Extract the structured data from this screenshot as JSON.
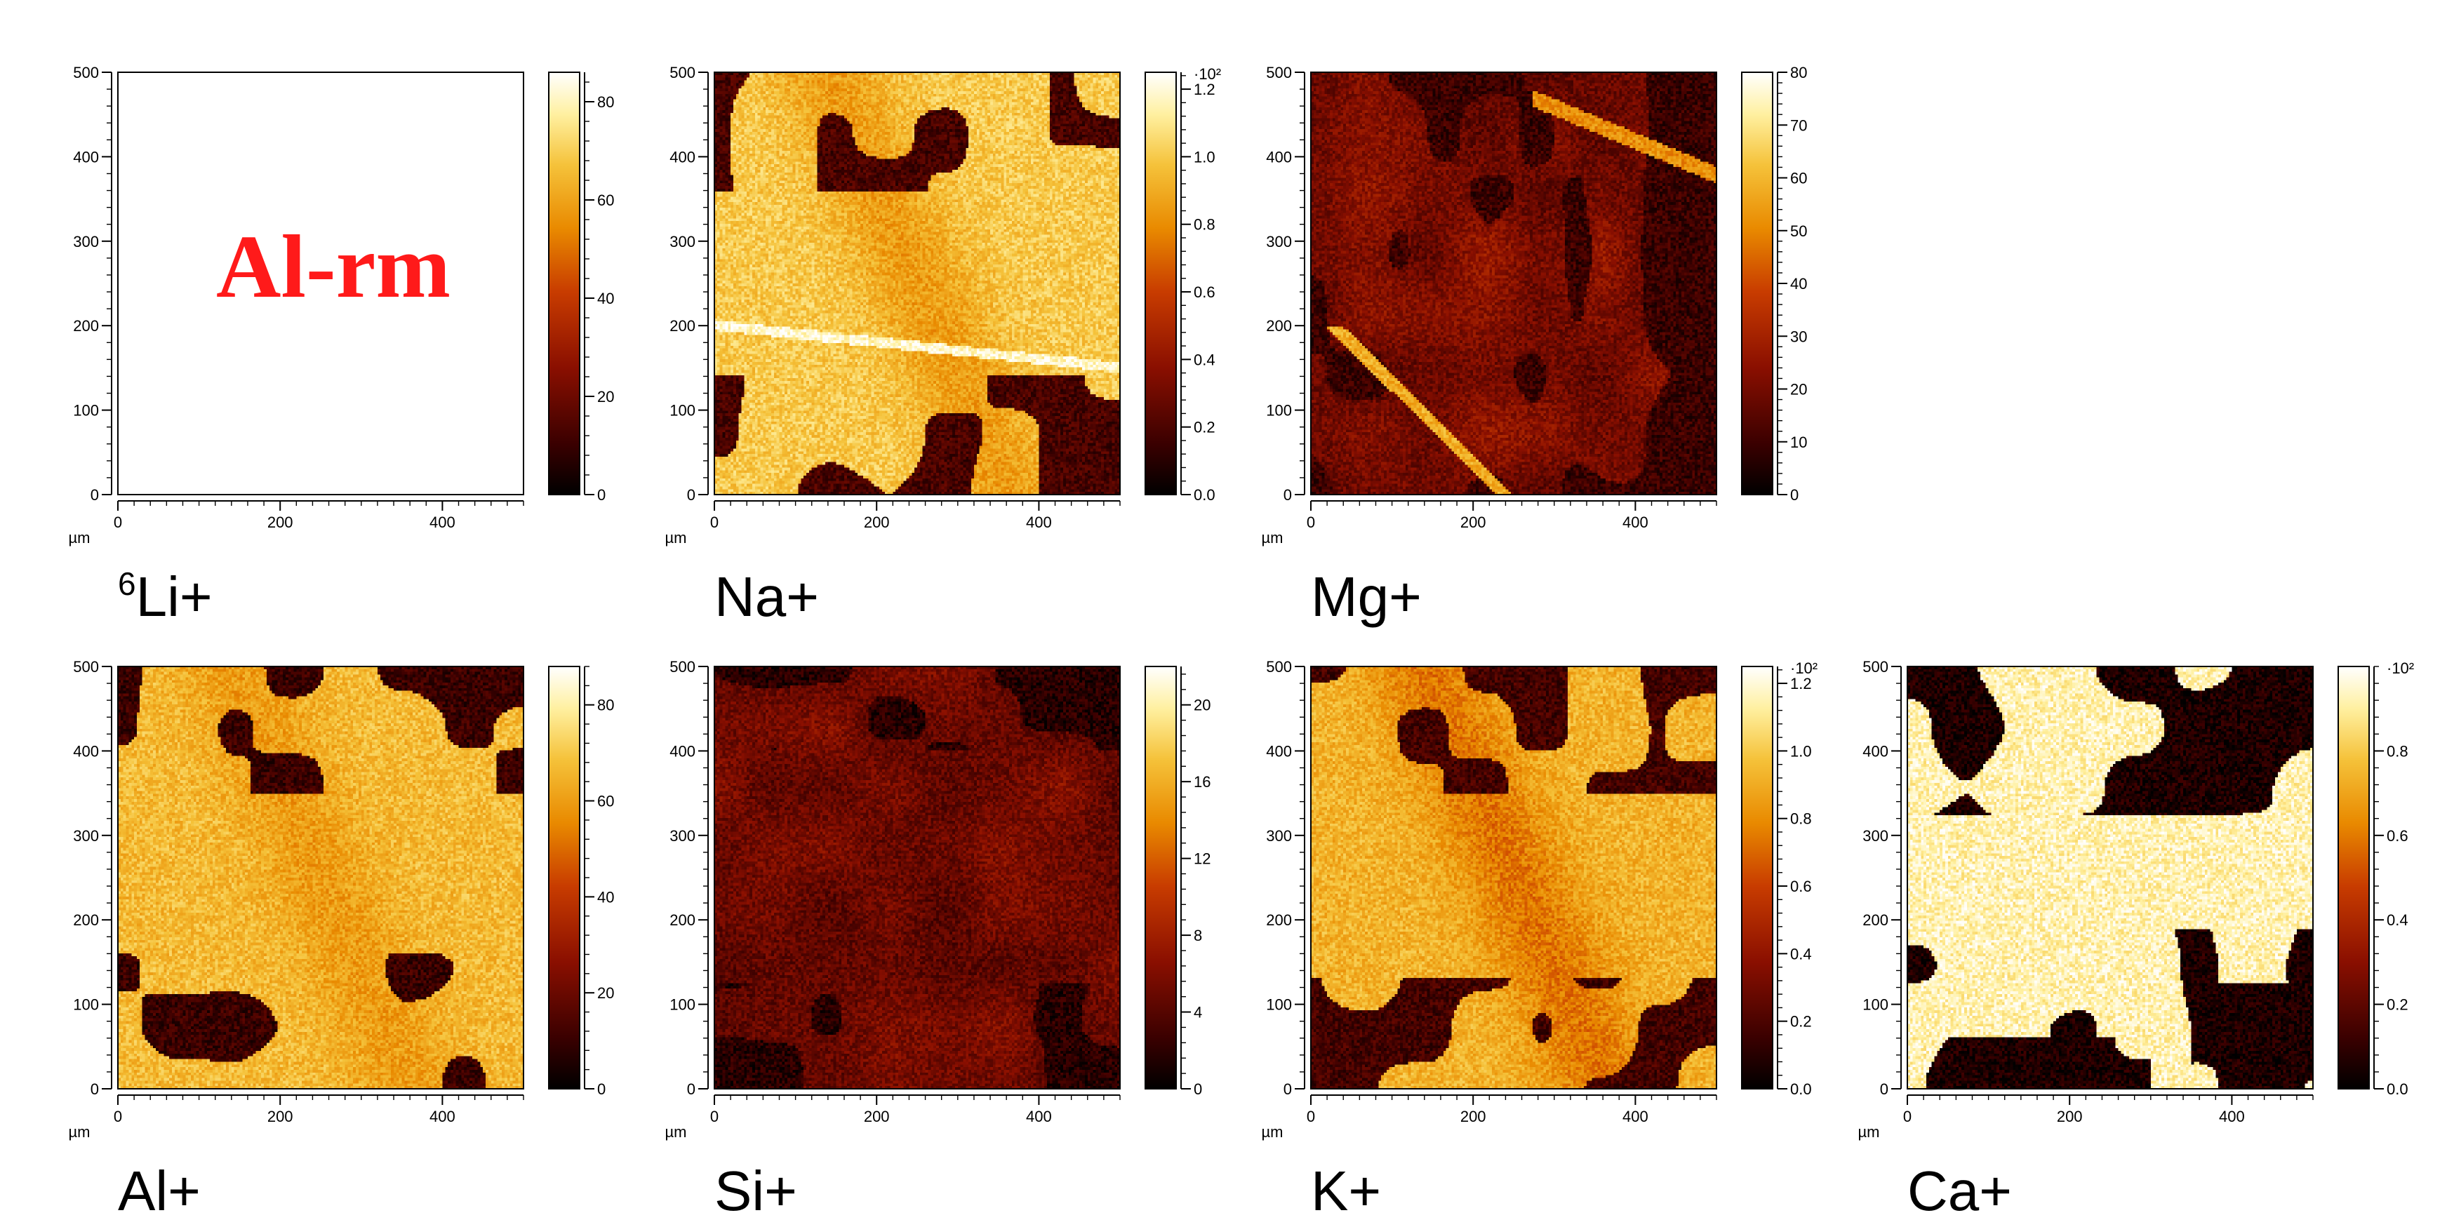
{
  "overlay_text": "Al-rm",
  "colors": {
    "overlay": "#ff1a1a",
    "colormap": [
      "#000000",
      "#3a0000",
      "#8a0f00",
      "#c83c00",
      "#e98a00",
      "#f5c23a",
      "#fff0a0",
      "#ffffff"
    ]
  },
  "chart_data": [
    {
      "type": "heatmap",
      "title": "6Li+",
      "label_main": "Li+",
      "label_sup": "6",
      "xlabel": "µm",
      "xlim": [
        0,
        500
      ],
      "ylim": [
        0,
        500
      ],
      "x_ticks": [
        "0",
        "200",
        "400"
      ],
      "y_ticks": [
        "0",
        "100",
        "200",
        "300",
        "400",
        "500"
      ],
      "colorbar": {
        "min": 0,
        "max": 86,
        "ticks": [
          "0",
          "20",
          "40",
          "60",
          "80"
        ],
        "multiplier": ""
      }
    },
    {
      "type": "heatmap",
      "title": "Na+",
      "label_main": "Na+",
      "label_sup": "",
      "xlabel": "µm",
      "xlim": [
        0,
        500
      ],
      "ylim": [
        0,
        500
      ],
      "x_ticks": [
        "0",
        "200",
        "400"
      ],
      "y_ticks": [
        "0",
        "100",
        "200",
        "300",
        "400",
        "500"
      ],
      "colorbar": {
        "min": 0,
        "max": 1.25,
        "ticks": [
          "0.0",
          "0.2",
          "0.4",
          "0.6",
          "0.8",
          "1.0",
          "1.2"
        ],
        "multiplier": "·10²"
      }
    },
    {
      "type": "heatmap",
      "title": "Mg+",
      "label_main": "Mg+",
      "label_sup": "",
      "xlabel": "µm",
      "xlim": [
        0,
        500
      ],
      "ylim": [
        0,
        500
      ],
      "x_ticks": [
        "0",
        "200",
        "400"
      ],
      "y_ticks": [
        "0",
        "100",
        "200",
        "300",
        "400",
        "500"
      ],
      "colorbar": {
        "min": 0,
        "max": 80,
        "ticks": [
          "0",
          "10",
          "20",
          "30",
          "40",
          "50",
          "60",
          "70",
          "80"
        ],
        "multiplier": ""
      }
    },
    {
      "type": "heatmap",
      "title": "Al+",
      "label_main": "Al+",
      "label_sup": "",
      "xlabel": "µm",
      "xlim": [
        0,
        500
      ],
      "ylim": [
        0,
        500
      ],
      "x_ticks": [
        "0",
        "200",
        "400"
      ],
      "y_ticks": [
        "0",
        "100",
        "200",
        "300",
        "400",
        "500"
      ],
      "colorbar": {
        "min": 0,
        "max": 88,
        "ticks": [
          "0",
          "20",
          "40",
          "60",
          "80"
        ],
        "multiplier": ""
      }
    },
    {
      "type": "heatmap",
      "title": "Si+",
      "label_main": "Si+",
      "label_sup": "",
      "xlabel": "µm",
      "xlim": [
        0,
        500
      ],
      "ylim": [
        0,
        500
      ],
      "x_ticks": [
        "0",
        "200",
        "400"
      ],
      "y_ticks": [
        "0",
        "100",
        "200",
        "300",
        "400",
        "500"
      ],
      "colorbar": {
        "min": 0,
        "max": 22,
        "ticks": [
          "0",
          "4",
          "8",
          "12",
          "16",
          "20"
        ],
        "multiplier": ""
      }
    },
    {
      "type": "heatmap",
      "title": "K+",
      "label_main": "K+",
      "label_sup": "",
      "xlabel": "µm",
      "xlim": [
        0,
        500
      ],
      "ylim": [
        0,
        500
      ],
      "x_ticks": [
        "0",
        "200",
        "400"
      ],
      "y_ticks": [
        "0",
        "100",
        "200",
        "300",
        "400",
        "500"
      ],
      "colorbar": {
        "min": 0,
        "max": 1.25,
        "ticks": [
          "0.0",
          "0.2",
          "0.4",
          "0.6",
          "0.8",
          "1.0",
          "1.2"
        ],
        "multiplier": "·10²"
      }
    },
    {
      "type": "heatmap",
      "title": "Ca+",
      "label_main": "Ca+",
      "label_sup": "",
      "xlabel": "µm",
      "xlim": [
        0,
        500
      ],
      "ylim": [
        0,
        500
      ],
      "x_ticks": [
        "0",
        "200",
        "400"
      ],
      "y_ticks": [
        "0",
        "100",
        "200",
        "300",
        "400",
        "500"
      ],
      "colorbar": {
        "min": 0,
        "max": 1.0,
        "ticks": [
          "0.0",
          "0.2",
          "0.4",
          "0.6",
          "0.8"
        ],
        "multiplier": "·10²"
      }
    }
  ]
}
